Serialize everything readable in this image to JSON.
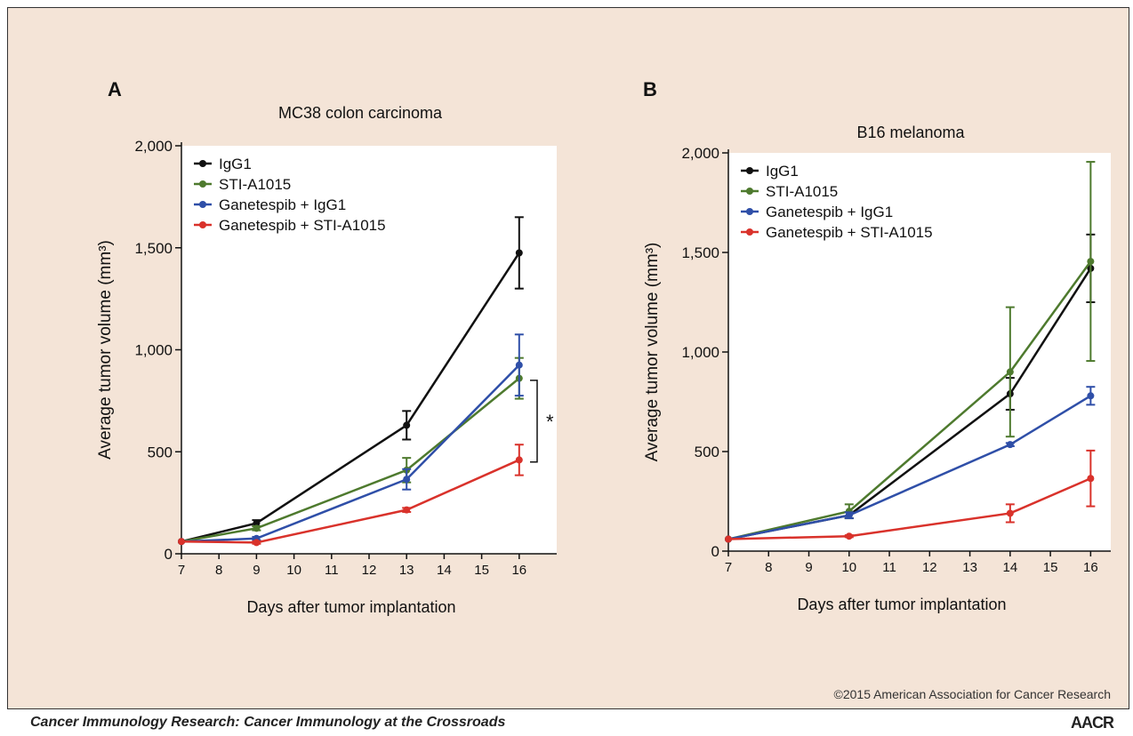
{
  "copyright": "©2015 American Association for Cancer Research",
  "journal": "Cancer Immunology Research: Cancer Immunology at the Crossroads",
  "logo": "AACR",
  "significance_mark": "*",
  "chart_data": [
    {
      "type": "line",
      "panel": "A",
      "title": "MC38 colon carcinoma",
      "xlabel": "Days after tumor implantation",
      "ylabel": "Average tumor volume (mm³)",
      "xlim": [
        7,
        17
      ],
      "ylim": [
        0,
        2000
      ],
      "xticks": [
        7,
        8,
        9,
        10,
        11,
        12,
        13,
        14,
        15,
        16
      ],
      "yticks": [
        0,
        500,
        1000,
        1500,
        2000
      ],
      "ytick_labels": [
        "0",
        "500",
        "1,000",
        "1,500",
        "2,000"
      ],
      "legend_position": "top-left",
      "series": [
        {
          "name": "IgG1",
          "color": "#111111",
          "x": [
            7,
            9,
            13,
            16
          ],
          "y": [
            60,
            150,
            630,
            1475
          ],
          "err": [
            0,
            15,
            70,
            175
          ]
        },
        {
          "name": "STI-A1015",
          "color": "#4e7a2e",
          "x": [
            7,
            9,
            13,
            16
          ],
          "y": [
            60,
            125,
            410,
            860
          ],
          "err": [
            0,
            10,
            60,
            100
          ]
        },
        {
          "name": "Ganetespib + IgG1",
          "color": "#2f4fa8",
          "x": [
            7,
            9,
            13,
            16
          ],
          "y": [
            60,
            75,
            365,
            925
          ],
          "err": [
            0,
            8,
            50,
            150
          ]
        },
        {
          "name": "Ganetespib + STI-A1015",
          "color": "#d9322b",
          "x": [
            7,
            9,
            13,
            16
          ],
          "y": [
            60,
            55,
            215,
            460
          ],
          "err": [
            0,
            6,
            10,
            75
          ]
        }
      ]
    },
    {
      "type": "line",
      "panel": "B",
      "title": "B16 melanoma",
      "xlabel": "Days after tumor implantation",
      "ylabel": "Average tumor volume (mm³)",
      "xlim": [
        7,
        16.5
      ],
      "ylim": [
        0,
        2000
      ],
      "xticks": [
        7,
        8,
        9,
        10,
        11,
        12,
        13,
        14,
        15,
        16
      ],
      "yticks": [
        0,
        500,
        1000,
        1500,
        2000
      ],
      "ytick_labels": [
        "0",
        "500",
        "1,000",
        "1,500",
        "2,000"
      ],
      "legend_position": "top-left",
      "series": [
        {
          "name": "IgG1",
          "color": "#111111",
          "x": [
            7,
            10,
            14,
            16
          ],
          "y": [
            60,
            180,
            790,
            1420
          ],
          "err": [
            0,
            15,
            80,
            170
          ]
        },
        {
          "name": "STI-A1015",
          "color": "#4e7a2e",
          "x": [
            7,
            10,
            14,
            16
          ],
          "y": [
            60,
            200,
            900,
            1455
          ],
          "err": [
            0,
            35,
            325,
            500
          ]
        },
        {
          "name": "Ganetespib + IgG1",
          "color": "#2f4fa8",
          "x": [
            7,
            10,
            14,
            16
          ],
          "y": [
            60,
            180,
            535,
            780
          ],
          "err": [
            0,
            15,
            8,
            45
          ]
        },
        {
          "name": "Ganetespib + STI-A1015",
          "color": "#d9322b",
          "x": [
            7,
            10,
            14,
            16
          ],
          "y": [
            60,
            75,
            190,
            365
          ],
          "err": [
            0,
            5,
            45,
            140
          ]
        }
      ]
    }
  ]
}
